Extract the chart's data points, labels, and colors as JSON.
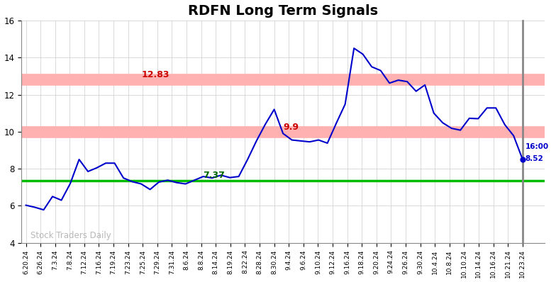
{
  "title": "RDFN Long Term Signals",
  "title_fontsize": 14,
  "title_fontweight": "bold",
  "watermark": "Stock Traders Daily",
  "line_color": "#0000cc",
  "line_width": 1.5,
  "background_color": "#ffffff",
  "grid_color": "#cccccc",
  "ylim": [
    4,
    16
  ],
  "yticks": [
    4,
    6,
    8,
    10,
    12,
    14,
    16
  ],
  "hline_green": 7.37,
  "hline_green_color": "#00bb00",
  "hline_red1": 10.0,
  "hline_red1_color": "#ffb0b0",
  "hline_red2": 12.83,
  "hline_red2_color": "#ffb0b0",
  "label_12_83": "12.83",
  "label_12_83_color": "#cc0000",
  "label_9_9": "9.9",
  "label_9_9_color": "#cc0000",
  "label_7_37": "7.37",
  "label_7_37_color": "#006600",
  "endpoint_label_time": "16:00",
  "endpoint_label_price": "8.52",
  "endpoint_color": "#0000cc",
  "x_labels": [
    "6.20.24",
    "6.26.24",
    "7.3.24",
    "7.8.24",
    "7.12.24",
    "7.16.24",
    "7.19.24",
    "7.23.24",
    "7.25.24",
    "7.29.24",
    "7.31.24",
    "8.6.24",
    "8.8.24",
    "8.14.24",
    "8.19.24",
    "8.22.24",
    "8.28.24",
    "8.30.24",
    "9.4.24",
    "9.6.24",
    "9.10.24",
    "9.12.24",
    "9.16.24",
    "9.18.24",
    "9.20.24",
    "9.24.24",
    "9.26.24",
    "9.30.24",
    "10.4.24",
    "10.8.24",
    "10.10.24",
    "10.14.24",
    "10.16.24",
    "10.21.24",
    "10.23.24"
  ],
  "prices": [
    6.03,
    5.92,
    5.78,
    6.5,
    6.3,
    7.2,
    8.5,
    7.85,
    8.05,
    8.3,
    8.3,
    7.5,
    7.3,
    7.18,
    6.88,
    7.28,
    7.38,
    7.25,
    7.18,
    7.38,
    7.58,
    7.5,
    7.65,
    7.52,
    7.58,
    8.5,
    9.5,
    10.4,
    11.2,
    9.9,
    9.55,
    9.5,
    9.45,
    9.55,
    9.38,
    10.45,
    11.48,
    14.5,
    14.18,
    13.5,
    13.3,
    12.62,
    12.78,
    12.7,
    12.18,
    12.52,
    11.0,
    10.48,
    10.18,
    10.08,
    10.72,
    10.7,
    11.28,
    11.28,
    10.38,
    9.78,
    8.52
  ],
  "label_12_83_idx": 13,
  "label_9_9_idx": 29,
  "label_7_37_idx": 20
}
